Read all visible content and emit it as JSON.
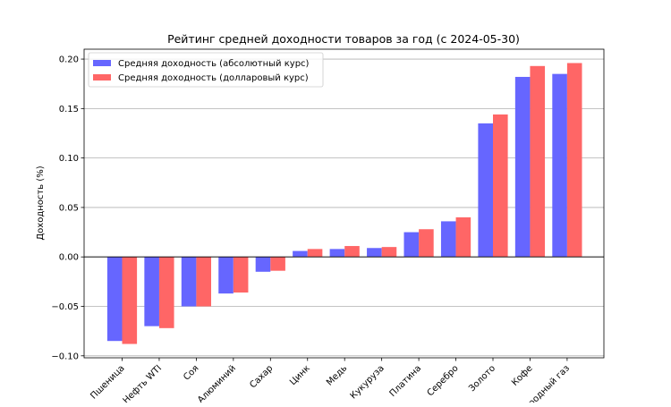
{
  "chart_data": {
    "type": "bar",
    "title": "Рейтинг средней доходности товаров за год (с 2024-05-30)",
    "xlabel": "",
    "ylabel": "Доходность (%)",
    "ylim": [
      -0.102,
      0.21
    ],
    "yticks": [
      -0.1,
      -0.05,
      0.0,
      0.05,
      0.1,
      0.15,
      0.2
    ],
    "ytick_labels": [
      "−0.10",
      "−0.05",
      "0.00",
      "0.05",
      "0.10",
      "0.15",
      "0.20"
    ],
    "categories": [
      "Пшеница",
      "Нефть WTI",
      "Соя",
      "Алюминий",
      "Сахар",
      "Цинк",
      "Медь",
      "Кукуруза",
      "Платина",
      "Серебро",
      "Золото",
      "Кофе",
      "Природный газ"
    ],
    "series": [
      {
        "name": "Средняя доходность (абсолютный курс)",
        "color": "#6666ff",
        "values": [
          -0.085,
          -0.07,
          -0.05,
          -0.037,
          -0.015,
          0.006,
          0.008,
          0.009,
          0.025,
          0.036,
          0.135,
          0.182,
          0.185
        ]
      },
      {
        "name": "Средняя доходность (долларовый курс)",
        "color": "#ff6666",
        "values": [
          -0.088,
          -0.072,
          -0.05,
          -0.036,
          -0.014,
          0.008,
          0.011,
          0.01,
          0.028,
          0.04,
          0.144,
          0.193,
          0.196
        ]
      }
    ],
    "grid": "horizontal",
    "legend_position": "top-left"
  }
}
